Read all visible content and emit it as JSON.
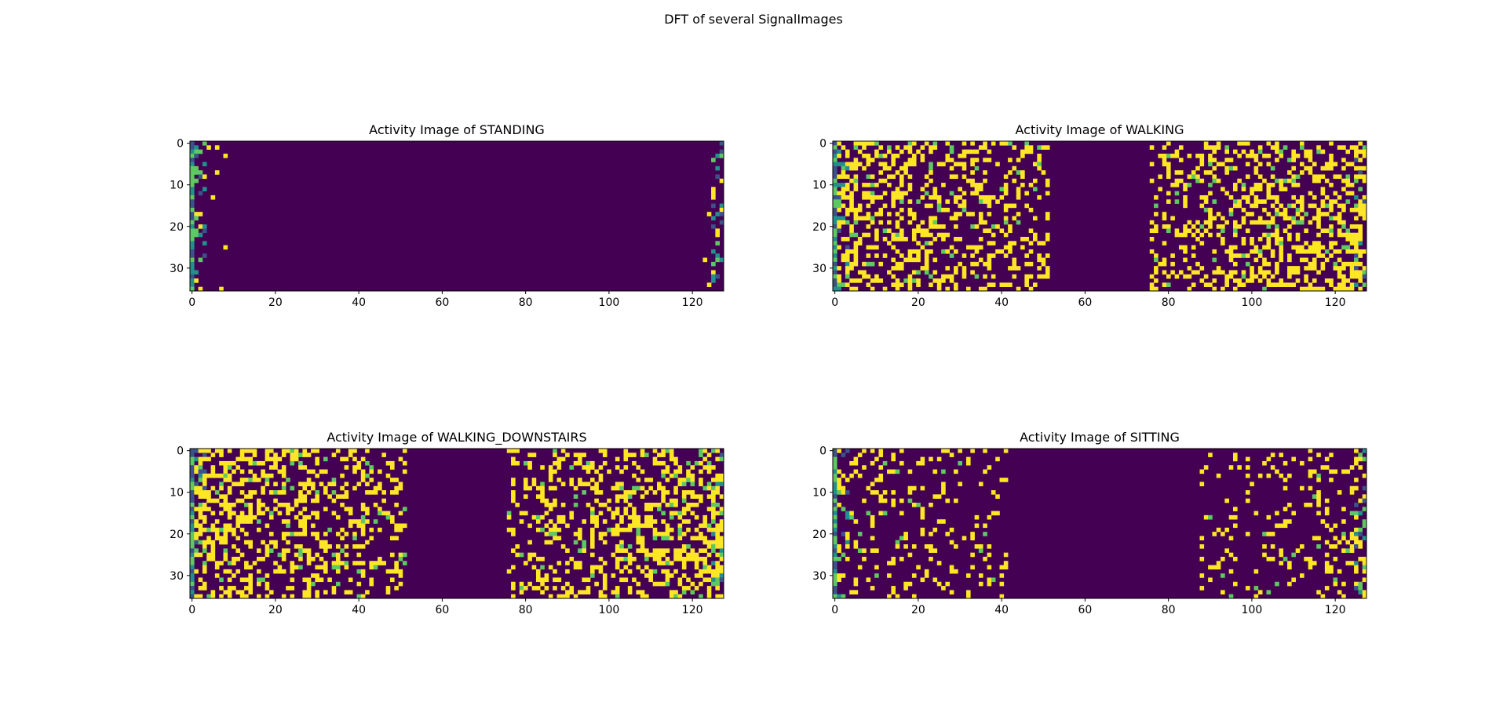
{
  "figure": {
    "suptitle": "DFT of several SignalImages",
    "colormap": "viridis",
    "colors": {
      "low": "#440154",
      "mid_low": "#3b528b",
      "mid": "#21918c",
      "mid_high": "#5ec962",
      "high": "#fde725"
    }
  },
  "chart_data": [
    {
      "type": "heatmap",
      "title": "Activity Image of STANDING",
      "xlabel": "",
      "ylabel": "",
      "xlim": [
        -0.5,
        127.5
      ],
      "ylim": [
        35.5,
        -0.5
      ],
      "xticks": [
        0,
        20,
        40,
        60,
        80,
        100,
        120
      ],
      "yticks": [
        0,
        10,
        20,
        30
      ],
      "rows": 36,
      "cols": 128,
      "pattern": {
        "left_band": 9,
        "right_band": 8,
        "density_left": 0.07,
        "density_right": 0.07,
        "seed": 11,
        "first_col_gradient": true
      }
    },
    {
      "type": "heatmap",
      "title": "Activity Image of WALKING",
      "xlabel": "",
      "ylabel": "",
      "xlim": [
        -0.5,
        127.5
      ],
      "ylim": [
        35.5,
        -0.5
      ],
      "xticks": [
        0,
        20,
        40,
        60,
        80,
        100,
        120
      ],
      "yticks": [
        0,
        10,
        20,
        30
      ],
      "rows": 36,
      "cols": 128,
      "pattern": {
        "left_band": 52,
        "right_band": 52,
        "density_left": 0.42,
        "density_right": 0.45,
        "seed": 23,
        "first_col_gradient": true
      }
    },
    {
      "type": "heatmap",
      "title": "Activity Image of WALKING_DOWNSTAIRS",
      "xlabel": "",
      "ylabel": "",
      "xlim": [
        -0.5,
        127.5
      ],
      "ylim": [
        35.5,
        -0.5
      ],
      "xticks": [
        0,
        20,
        40,
        60,
        80,
        100,
        120
      ],
      "yticks": [
        0,
        10,
        20,
        30
      ],
      "rows": 36,
      "cols": 128,
      "pattern": {
        "left_band": 52,
        "right_band": 52,
        "density_left": 0.45,
        "density_right": 0.45,
        "seed": 37,
        "first_col_gradient": true
      }
    },
    {
      "type": "heatmap",
      "title": "Activity Image of SITTING",
      "xlabel": "",
      "ylabel": "",
      "xlim": [
        -0.5,
        127.5
      ],
      "ylim": [
        35.5,
        -0.5
      ],
      "xticks": [
        0,
        20,
        40,
        60,
        80,
        100,
        120
      ],
      "yticks": [
        0,
        10,
        20,
        30
      ],
      "rows": 36,
      "cols": 128,
      "pattern": {
        "left_band": 42,
        "right_band": 40,
        "density_left": 0.18,
        "density_right": 0.2,
        "seed": 53,
        "first_col_gradient": true
      }
    }
  ]
}
